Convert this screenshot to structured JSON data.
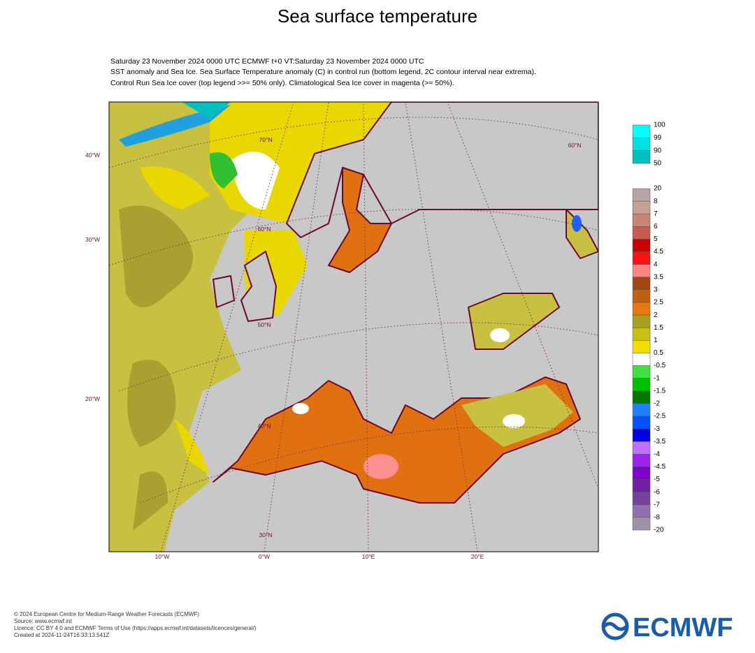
{
  "title": "Sea surface temperature",
  "header": [
    "Saturday 23 November 2024 0000 UTC  ECMWF  t+0  VT:Saturday 23 November 2024 0000 UTC",
    "SST anomaly and Sea Ice. Sea Surface Temperature anomaly (C) in control run (bottom legend, 2C contour interval near extrema).",
    "Control Run Sea Ice cover (top legend >>= 50% only). Climatological Sea Ice cover in magenta (>= 50%)."
  ],
  "map": {
    "side_labels": [
      "40°W",
      "30°W",
      "20°W"
    ],
    "bottom_labels": [
      "10°W",
      "0°W",
      "10°E",
      "20°E"
    ],
    "grid_labels": [
      "70°N",
      "60°N",
      "50°N",
      "40°N",
      "30°N",
      "60°N"
    ]
  },
  "ice_legend": {
    "labels": [
      "100",
      "99",
      "90",
      "50"
    ],
    "colors": [
      "#00ffff",
      "#00e0e0",
      "#00c0c0"
    ]
  },
  "sst_legend": {
    "labels": [
      "20",
      "8",
      "7",
      "6",
      "5",
      "4.5",
      "4",
      "3.5",
      "3",
      "2.5",
      "2",
      "1.5",
      "1",
      "0.5",
      "-0.5",
      "-1",
      "-1.5",
      "-2",
      "-2.5",
      "-3",
      "-3.5",
      "-4",
      "-4.5",
      "-5",
      "-6",
      "-7",
      "-8",
      "-20"
    ],
    "colors": [
      "#b8a4a4",
      "#c8a098",
      "#c88474",
      "#c85a50",
      "#c80000",
      "#ff1010",
      "#ff8484",
      "#a04810",
      "#c06010",
      "#e87810",
      "#a8a020",
      "#c8c010",
      "#f0e000",
      "#ffffff",
      "#40e040",
      "#00c000",
      "#007800",
      "#2080ff",
      "#0050ff",
      "#0000e0",
      "#c070ff",
      "#a020f0",
      "#8000d0",
      "#7020a0",
      "#7840a0",
      "#9070b0",
      "#a090a8"
    ]
  },
  "footer": [
    "© 2024 European Centre for Medium-Range Weather Forecasts (ECMWF)",
    "Source: www.ecmwf.int",
    "Licence: CC BY 4.0 and ECMWF Terms of Use (https://apps.ecmwf.int/datasets/licences/general/)",
    "Created at 2024-11-24T16:33:13.541Z"
  ],
  "logo": "ECMWF"
}
